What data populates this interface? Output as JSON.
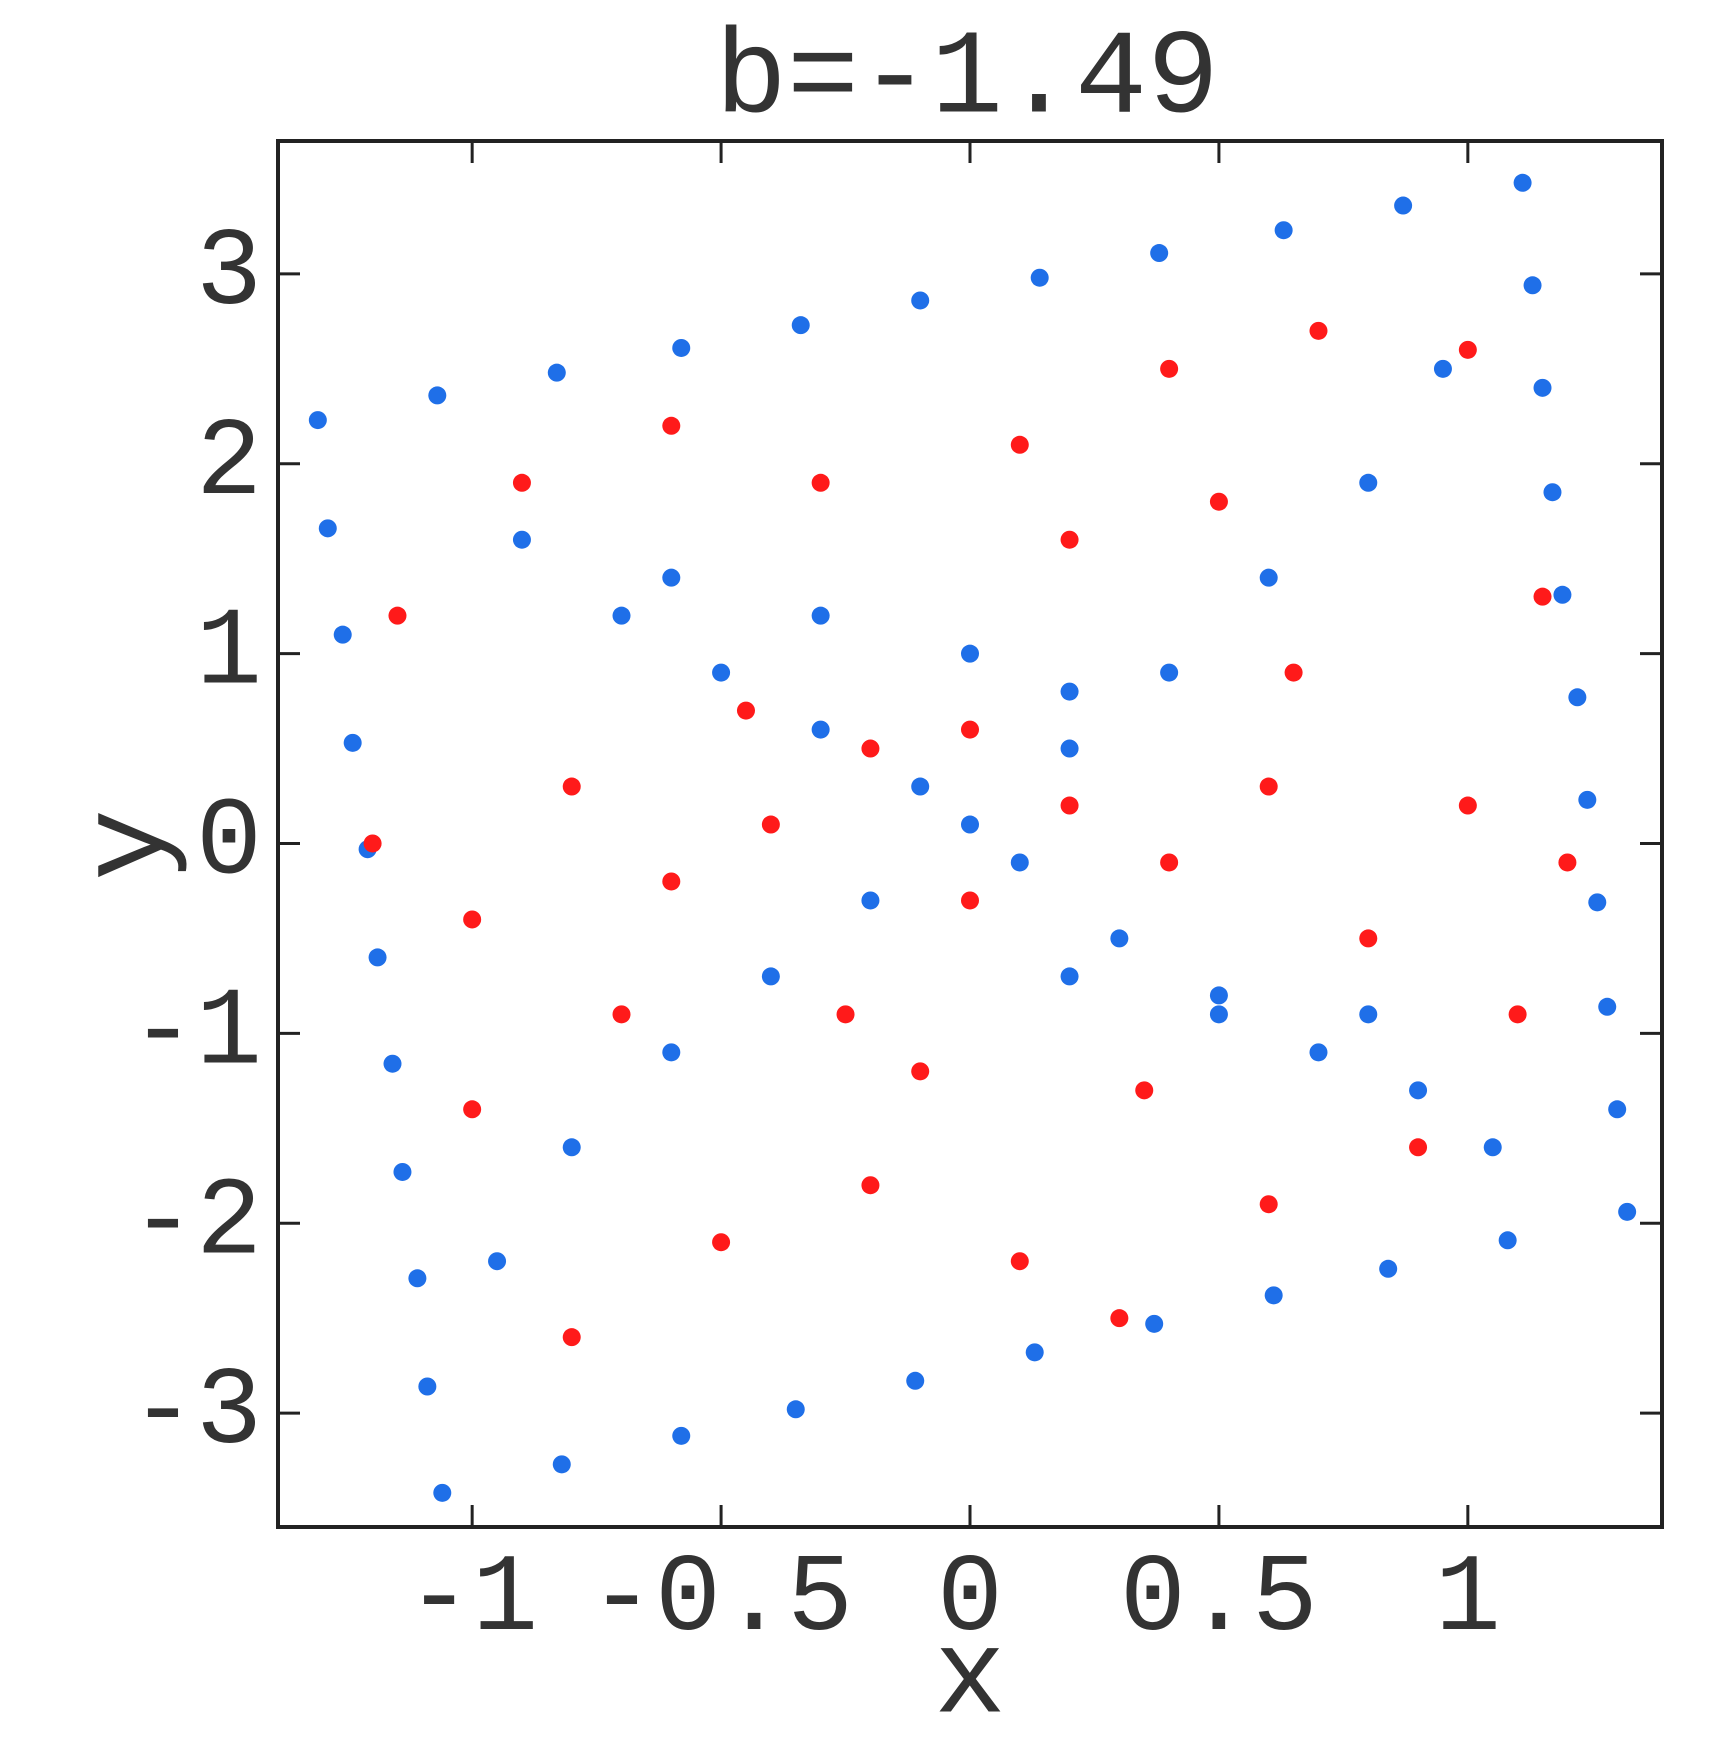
{
  "chart_data": {
    "type": "scatter",
    "title": "b=-1.49",
    "x_label": "x",
    "y_label": "y",
    "xlim": [
      -1.39,
      1.39
    ],
    "ylim": [
      -3.6,
      3.7
    ],
    "xticks": [
      -1,
      -0.5,
      0,
      0.5,
      1
    ],
    "yticks": [
      -3,
      -2,
      -1,
      0,
      1,
      2,
      3
    ],
    "series": [
      {
        "color": "#1f6fe8",
        "x": [
          -1.31,
          -1.07,
          -0.83,
          -0.58,
          -0.34,
          -0.1,
          0.14,
          0.38,
          0.63,
          0.87,
          1.11,
          1.13,
          1.15,
          1.17,
          1.19,
          1.22,
          1.24,
          1.26,
          1.28,
          1.3,
          1.32,
          1.08,
          0.84,
          0.61,
          0.37,
          0.13,
          -0.11,
          -0.35,
          -0.58,
          -0.82,
          -1.06,
          -1.09,
          -1.11,
          -1.14,
          -1.16,
          -1.19,
          -1.21,
          -1.24,
          -1.26,
          -1.29,
          -0.9,
          -0.7,
          -0.5,
          -0.3,
          -0.1,
          0.1,
          0.3,
          0.5,
          0.7,
          0.9,
          1.05,
          -0.95,
          -0.8,
          -0.6,
          -0.4,
          -0.2,
          0.0,
          0.2,
          0.4,
          0.6,
          0.8,
          0.95,
          -0.6,
          -0.3,
          0.0,
          0.2,
          0.2,
          0.5,
          0.8
        ],
        "values": [
          2.23,
          2.36,
          2.48,
          2.61,
          2.73,
          2.86,
          2.98,
          3.11,
          3.23,
          3.36,
          3.48,
          2.94,
          2.4,
          1.85,
          1.31,
          0.77,
          0.23,
          -0.31,
          -0.86,
          -1.4,
          -1.94,
          -2.09,
          -2.24,
          -2.38,
          -2.53,
          -2.68,
          -2.83,
          -2.98,
          -3.12,
          -3.27,
          -3.42,
          -2.86,
          -2.29,
          -1.73,
          -1.16,
          -0.6,
          -0.03,
          0.53,
          1.1,
          1.66,
          1.6,
          1.2,
          0.9,
          0.6,
          0.3,
          -0.1,
          -0.5,
          -0.9,
          -1.1,
          -1.3,
          -1.6,
          -2.2,
          -1.6,
          -1.1,
          -0.7,
          -0.3,
          0.1,
          0.5,
          0.9,
          1.4,
          1.9,
          2.5,
          1.4,
          1.2,
          1.0,
          0.8,
          -0.7,
          -0.8,
          -0.9
        ]
      },
      {
        "color": "#ff1a1a",
        "x": [
          -1.2,
          -1.0,
          -0.8,
          -0.6,
          -0.4,
          -0.2,
          0.0,
          0.2,
          0.4,
          0.6,
          0.8,
          1.0,
          1.2,
          -0.9,
          -0.6,
          -0.3,
          0.1,
          0.4,
          0.7,
          1.0,
          0.2,
          0.5,
          -0.5,
          -0.2,
          0.1,
          0.3,
          0.6,
          -0.8,
          -1.0,
          -0.7,
          0.9,
          1.1,
          -0.1,
          0.35,
          -0.45,
          0.65,
          1.15,
          -1.15,
          0.0,
          -0.25
        ],
        "values": [
          0.0,
          -0.4,
          0.3,
          -0.2,
          0.1,
          0.5,
          -0.3,
          0.2,
          -0.1,
          0.3,
          -0.5,
          0.2,
          -0.1,
          1.9,
          2.2,
          1.9,
          2.1,
          2.5,
          2.7,
          2.6,
          1.6,
          1.8,
          -2.1,
          -1.8,
          -2.2,
          -2.5,
          -1.9,
          -2.6,
          -1.4,
          -0.9,
          -1.6,
          -0.9,
          -1.2,
          -1.3,
          0.7,
          0.9,
          1.3,
          1.2,
          0.6,
          -0.9
        ]
      }
    ]
  }
}
